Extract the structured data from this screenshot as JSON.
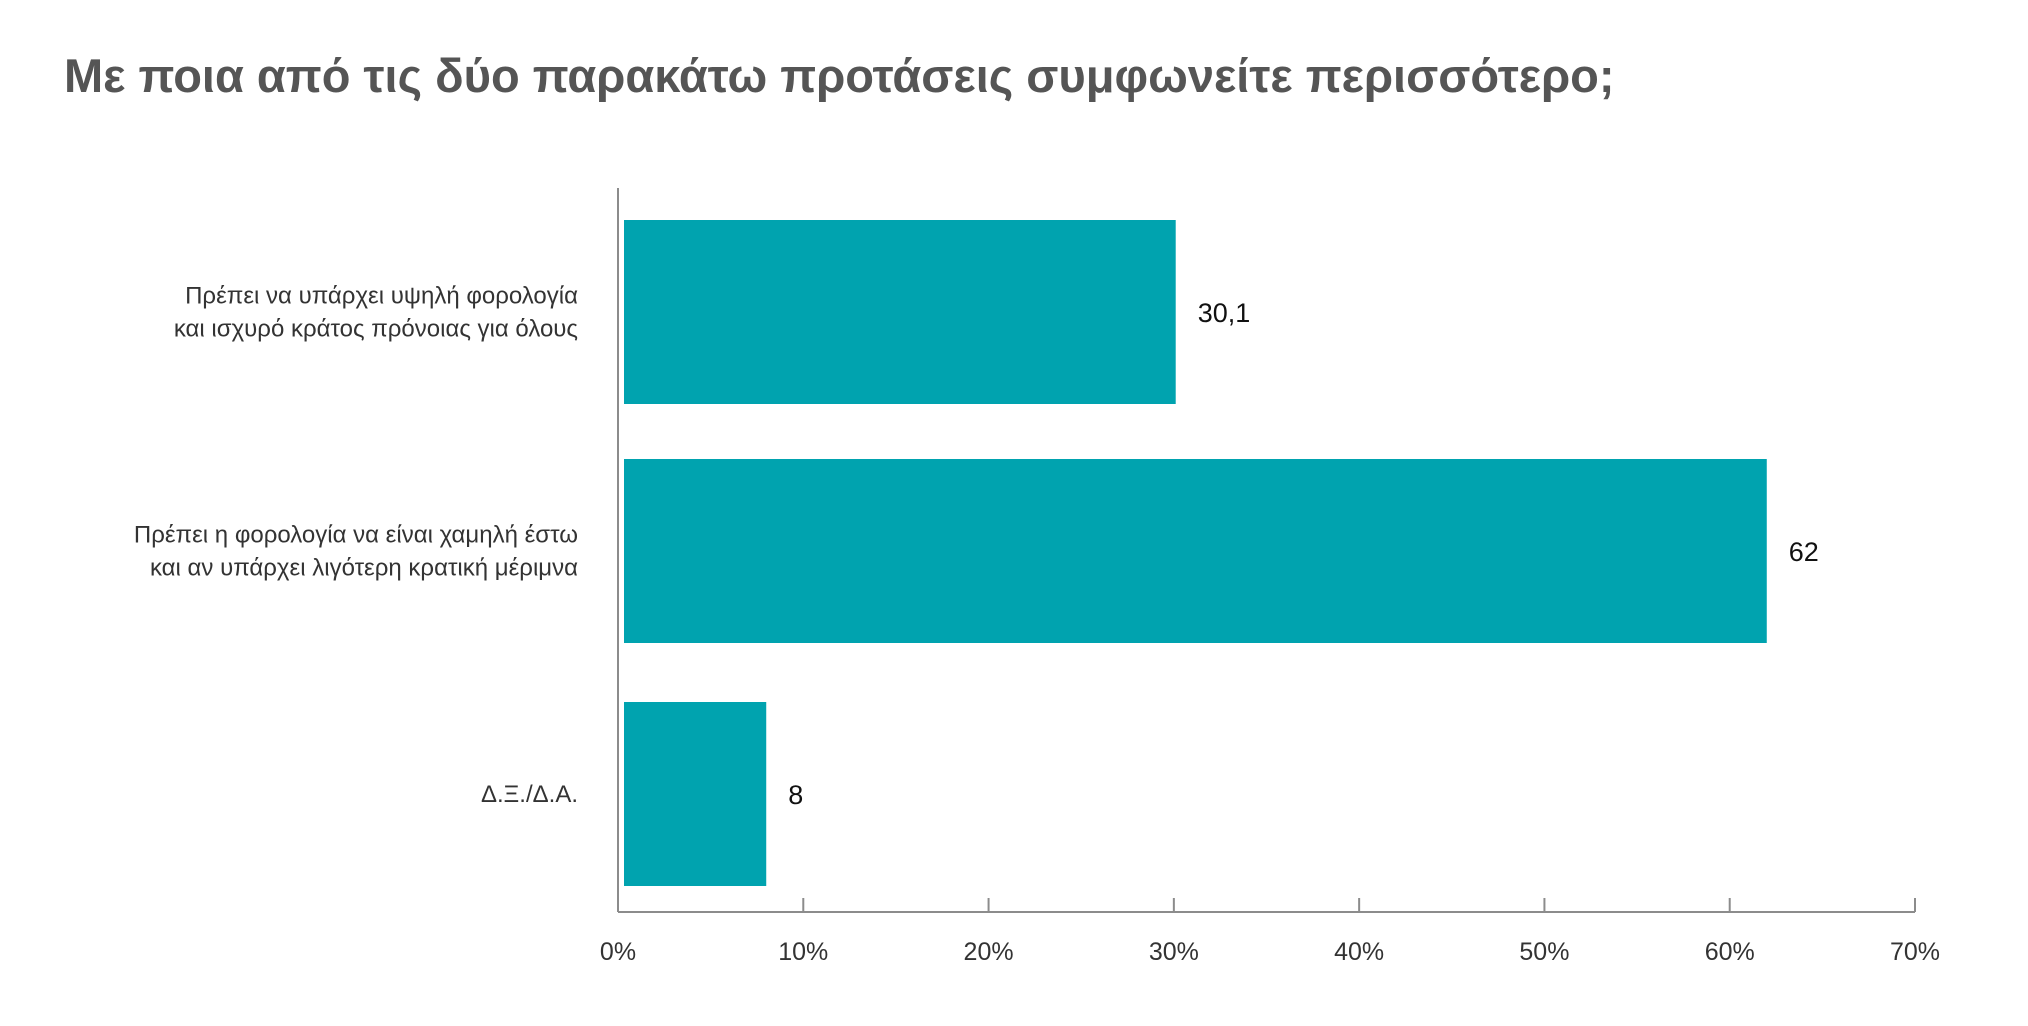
{
  "chart_data": {
    "type": "bar",
    "orientation": "horizontal",
    "title": "Με ποια από τις δύο παρακάτω προτάσεις συμφωνείτε περισσότερο;",
    "categories": [
      [
        "Πρέπει να υπάρχει υψηλή φορολογία",
        "και ισχυρό κράτος πρόνοιας για όλους"
      ],
      [
        "Πρέπει η φορολογία να είναι χαμηλή έστω",
        "και αν υπάρχει λιγότερη κρατική μέριμνα"
      ],
      [
        "Δ.Ξ./Δ.Α."
      ]
    ],
    "values": [
      30.1,
      62,
      8
    ],
    "data_labels": [
      "30,1",
      "62",
      "8"
    ],
    "xlim": [
      0,
      70
    ],
    "x_ticks": [
      0,
      10,
      20,
      30,
      40,
      50,
      60,
      70
    ],
    "x_tick_labels": [
      "0%",
      "10%",
      "20%",
      "30%",
      "40%",
      "50%",
      "60%",
      "70%"
    ],
    "grid": false,
    "legend": "none",
    "bar_color": "#00A3AF",
    "axis_color": "#8C8C8C"
  }
}
